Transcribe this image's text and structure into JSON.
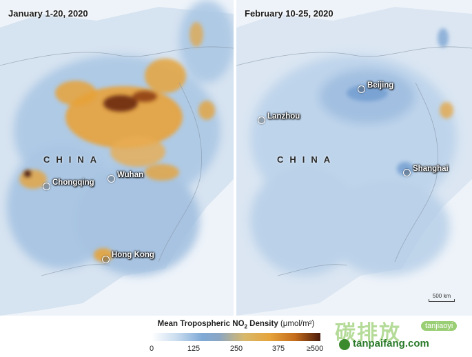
{
  "maps": {
    "left": {
      "title": "January 1-20, 2020",
      "country_label": "CHINA",
      "cities": {
        "chongqing": "Chongqing",
        "wuhan": "Wuhan",
        "hong_kong": "Hong Kong"
      }
    },
    "right": {
      "title": "February 10-25, 2020",
      "country_label": "CHINA",
      "cities": {
        "beijing": "Beijing",
        "lanzhou": "Lanzhou",
        "shanghai": "Shanghai"
      },
      "scale_label": "500 km"
    }
  },
  "legend": {
    "title_main": "Mean Tropospheric NO",
    "title_sub": "2",
    "title_tail": " Density",
    "unit": "(μmol/m²)",
    "ticks": [
      "0",
      "125",
      "250",
      "375",
      "≥500"
    ]
  },
  "watermark": {
    "chinese": "碳排放",
    "tag": "tanjiaoyi",
    "domain": "tanpaifang.com"
  },
  "colors": {
    "background": "#e4edf6",
    "low": "#7fa9d6",
    "medium": "#e6a43c",
    "high": "#4a1a0a",
    "watermark": "#3b8a2e"
  }
}
